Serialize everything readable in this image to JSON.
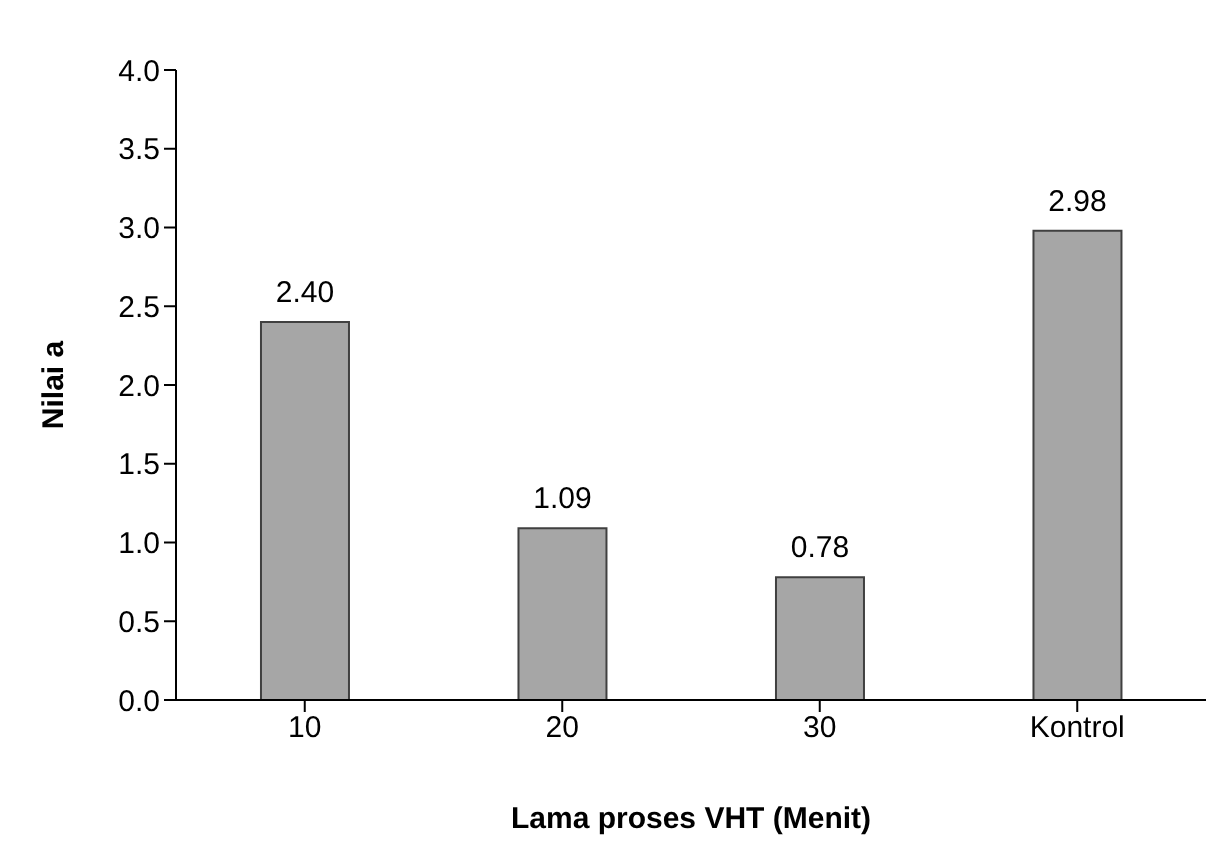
{
  "chart_data": {
    "type": "bar",
    "xlabel": "Lama proses VHT (Menit)",
    "ylabel": "Nilai a",
    "categories": [
      "10",
      "20",
      "30",
      "Kontrol"
    ],
    "values": [
      2.4,
      1.09,
      0.78,
      2.98
    ],
    "value_labels": [
      "2.40",
      "1.09",
      "0.78",
      "2.98"
    ],
    "color": "#a6a6a6",
    "ylim": [
      0,
      4
    ],
    "yticks": [
      {
        "value": 0,
        "label": "0.0"
      },
      {
        "value": 0.5,
        "label": "0.5"
      },
      {
        "value": 1,
        "label": "1.0"
      },
      {
        "value": 1.5,
        "label": "1.5"
      },
      {
        "value": 2,
        "label": "2.0"
      },
      {
        "value": 2.5,
        "label": "2.5"
      },
      {
        "value": 3,
        "label": "3.0"
      },
      {
        "value": 3.5,
        "label": "3.5"
      },
      {
        "value": 4,
        "label": "4.0"
      }
    ],
    "grid": false,
    "legend": false
  }
}
